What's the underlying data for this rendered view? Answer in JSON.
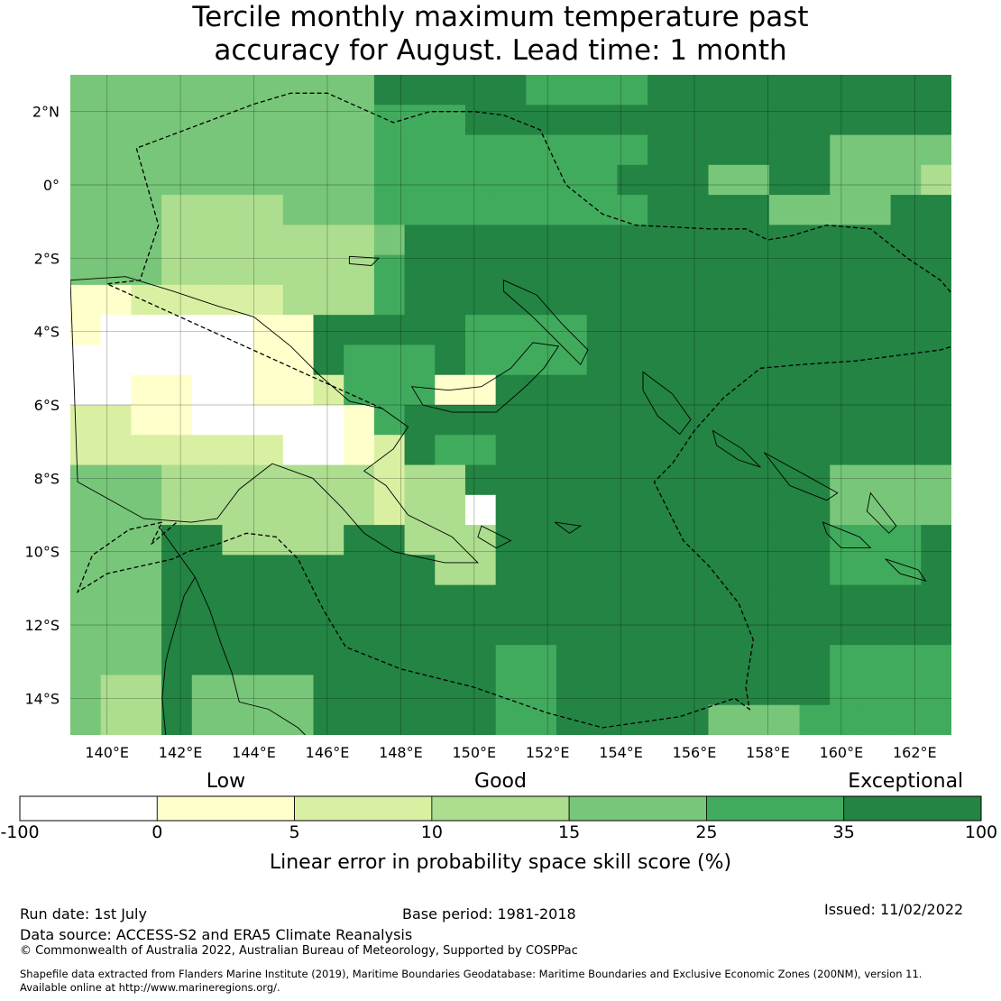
{
  "title_line1": "Tercile monthly maximum temperature past",
  "title_line2": "accuracy for August. Lead time: 1 month",
  "map": {
    "lon_min": 139,
    "lon_max": 163,
    "lat_min": -15,
    "lat_max": 3,
    "lon_ticks": [
      {
        "lon": 140,
        "label": "140°E"
      },
      {
        "lon": 142,
        "label": "142°E"
      },
      {
        "lon": 144,
        "label": "144°E"
      },
      {
        "lon": 146,
        "label": "146°E"
      },
      {
        "lon": 148,
        "label": "148°E"
      },
      {
        "lon": 150,
        "label": "150°E"
      },
      {
        "lon": 152,
        "label": "152°E"
      },
      {
        "lon": 154,
        "label": "154°E"
      },
      {
        "lon": 156,
        "label": "156°E"
      },
      {
        "lon": 158,
        "label": "158°E"
      },
      {
        "lon": 160,
        "label": "160°E"
      },
      {
        "lon": 162,
        "label": "162°E"
      }
    ],
    "lat_ticks": [
      {
        "lat": 2,
        "label": "2°N"
      },
      {
        "lat": 0,
        "label": "0°"
      },
      {
        "lat": -2,
        "label": "2°S"
      },
      {
        "lat": -4,
        "label": "4°S"
      },
      {
        "lat": -6,
        "label": "6°S"
      },
      {
        "lat": -8,
        "label": "8°S"
      },
      {
        "lat": -10,
        "label": "10°S"
      },
      {
        "lat": -12,
        "label": "12°S"
      },
      {
        "lat": -14,
        "label": "14°S"
      }
    ]
  },
  "colorbar": {
    "words": [
      {
        "text": "Low",
        "value_pos": 1.5
      },
      {
        "text": "Good",
        "value_pos": 3.5
      },
      {
        "text": "Exceptional",
        "value_pos": 6.45
      }
    ],
    "ticks": [
      "-100",
      "0",
      "5",
      "10",
      "15",
      "25",
      "35",
      "100"
    ],
    "colors": [
      "#ffffff",
      "#ffffcc",
      "#d9f0a3",
      "#addd8e",
      "#78c679",
      "#41ab5d",
      "#238443"
    ],
    "label": "Linear error in probability space skill score (%)"
  },
  "footer": {
    "run_date": "Run date: 1st July",
    "base_period": "Base period: 1981-2018",
    "issued": "Issued: 11/02/2022",
    "data_source": "Data source: ACCESS-S2 and ERA5 Climate Reanalysis",
    "copyright": "© Commonwealth of Australia 2022, Australian Bureau of Meteorology, Supported by COSPPac",
    "shapefile_line1": "Shapefile data extracted from Flanders Marine Institute (2019), Maritime Boundaries Geodatabase: Maritime Boundaries and Exclusive Economic Zones (200NM), version 11.",
    "shapefile_line2": "Available online at http://www.marineregions.org/."
  }
}
